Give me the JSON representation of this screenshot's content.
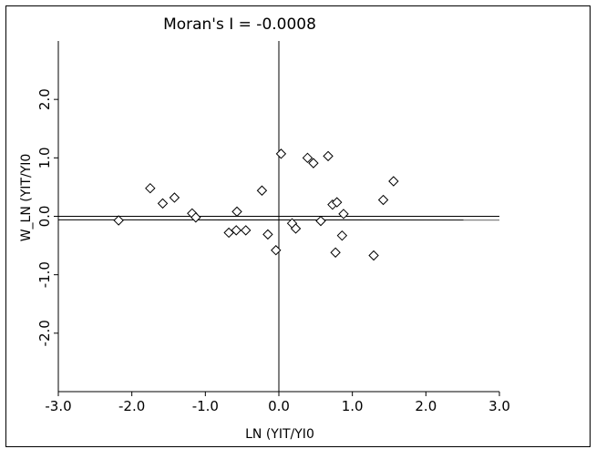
{
  "chart_data": {
    "type": "scatter",
    "title": "Moran's I = -0.0008",
    "xlabel": "LN (YIT/YI0",
    "ylabel": "W_LN (YIT/YI0",
    "xlim": [
      -3.0,
      3.0
    ],
    "ylim": [
      -3.0,
      3.0
    ],
    "x_ticks": [
      -3.0,
      -2.0,
      -1.0,
      0.0,
      1.0,
      2.0,
      3.0
    ],
    "x_tick_labels": [
      "-3.0",
      "-2.0",
      "-1.0",
      "0.0",
      "1.0",
      "2.0",
      "3.0"
    ],
    "y_ticks": [
      -2.0,
      -1.0,
      0.0,
      1.0,
      2.0
    ],
    "y_tick_labels": [
      "-2.0",
      "-1.0",
      "0.0",
      "1.0",
      "2.0"
    ],
    "regression_slope": -0.0008,
    "marker": "diamond",
    "grid": false,
    "points": [
      {
        "x": -2.18,
        "y": -0.07
      },
      {
        "x": -1.75,
        "y": 0.48
      },
      {
        "x": -1.58,
        "y": 0.22
      },
      {
        "x": -1.42,
        "y": 0.32
      },
      {
        "x": -1.18,
        "y": 0.05
      },
      {
        "x": -1.13,
        "y": -0.02
      },
      {
        "x": -0.68,
        "y": -0.28
      },
      {
        "x": -0.58,
        "y": -0.24
      },
      {
        "x": -0.57,
        "y": 0.08
      },
      {
        "x": -0.45,
        "y": -0.24
      },
      {
        "x": -0.23,
        "y": 0.44
      },
      {
        "x": -0.15,
        "y": -0.31
      },
      {
        "x": -0.04,
        "y": -0.58
      },
      {
        "x": 0.03,
        "y": 1.07
      },
      {
        "x": 0.18,
        "y": -0.12
      },
      {
        "x": 0.23,
        "y": -0.21
      },
      {
        "x": 0.39,
        "y": 1.0
      },
      {
        "x": 0.47,
        "y": 0.91
      },
      {
        "x": 0.57,
        "y": -0.08
      },
      {
        "x": 0.67,
        "y": 1.03
      },
      {
        "x": 0.73,
        "y": 0.2
      },
      {
        "x": 0.77,
        "y": -0.62
      },
      {
        "x": 0.79,
        "y": 0.24
      },
      {
        "x": 0.86,
        "y": -0.33
      },
      {
        "x": 0.88,
        "y": 0.04
      },
      {
        "x": 1.29,
        "y": -0.67
      },
      {
        "x": 1.42,
        "y": 0.28
      },
      {
        "x": 1.56,
        "y": 0.6
      }
    ]
  }
}
